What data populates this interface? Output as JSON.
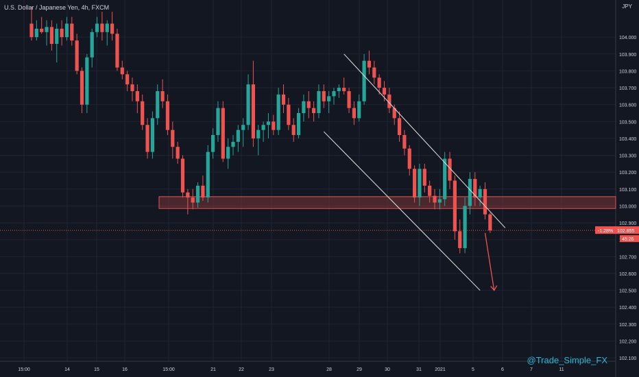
{
  "header": {
    "title": "U.S. Dollar / Japanese Yen, 4h, FXCM",
    "currency": "JPY"
  },
  "watermark": "@Trade_Simple_FX",
  "price_tag": {
    "change": "-1.28%",
    "price": "102.855",
    "timer": "45:26"
  },
  "colors": {
    "background": "#131722",
    "grid": "#1f2433",
    "up": "#26a69a",
    "down": "#ef5350",
    "zone": "#ef5350",
    "channel": "#e6e6e6",
    "arrow": "#ef5350",
    "text": "#d1d4dc"
  },
  "chart_data": {
    "type": "candlestick",
    "y_ticks": [
      "102.100",
      "102.200",
      "102.300",
      "102.400",
      "102.500",
      "102.600",
      "102.700",
      "102.800",
      "102.900",
      "103.000",
      "103.100",
      "103.200",
      "103.300",
      "103.400",
      "103.500",
      "103.600",
      "103.700",
      "103.800",
      "103.900",
      "104.000"
    ],
    "x_ticks": [
      "15:00",
      "14",
      "15",
      "16",
      "15:00",
      "21",
      "22",
      "23",
      "28",
      "29",
      "30",
      "31",
      "2021",
      "5",
      "6",
      "7",
      "11"
    ],
    "ylim": [
      102.08,
      104.22
    ],
    "grid": true,
    "support_zone": {
      "low": 102.985,
      "high": 103.055
    },
    "candles": [
      [
        104.08,
        104.18,
        103.98,
        104.0
      ],
      [
        104.0,
        104.1,
        103.98,
        104.05
      ],
      [
        104.05,
        104.12,
        104.02,
        104.03
      ],
      [
        104.03,
        104.1,
        103.95,
        104.06
      ],
      [
        104.06,
        104.1,
        103.92,
        103.96
      ],
      [
        103.96,
        104.08,
        103.85,
        104.05
      ],
      [
        104.05,
        104.1,
        103.95,
        104.0
      ],
      [
        104.0,
        104.12,
        103.98,
        104.08
      ],
      [
        104.08,
        104.12,
        103.95,
        103.98
      ],
      [
        103.98,
        104.02,
        103.78,
        103.8
      ],
      [
        103.8,
        103.82,
        103.55,
        103.6
      ],
      [
        103.6,
        103.9,
        103.55,
        103.88
      ],
      [
        103.88,
        104.05,
        103.82,
        104.03
      ],
      [
        104.03,
        104.12,
        104.0,
        104.08
      ],
      [
        104.08,
        104.15,
        103.98,
        104.03
      ],
      [
        104.03,
        104.1,
        103.95,
        104.08
      ],
      [
        104.08,
        104.15,
        103.98,
        104.02
      ],
      [
        104.02,
        104.05,
        103.8,
        103.82
      ],
      [
        103.82,
        103.86,
        103.75,
        103.78
      ],
      [
        103.78,
        103.8,
        103.68,
        103.72
      ],
      [
        103.72,
        103.76,
        103.62,
        103.68
      ],
      [
        103.68,
        103.72,
        103.55,
        103.62
      ],
      [
        103.62,
        103.66,
        103.45,
        103.48
      ],
      [
        103.48,
        103.52,
        103.28,
        103.32
      ],
      [
        103.32,
        103.56,
        103.28,
        103.52
      ],
      [
        103.52,
        103.72,
        103.48,
        103.68
      ],
      [
        103.68,
        103.75,
        103.58,
        103.62
      ],
      [
        103.62,
        103.66,
        103.42,
        103.45
      ],
      [
        103.45,
        103.5,
        103.28,
        103.35
      ],
      [
        103.35,
        103.38,
        103.25,
        103.28
      ],
      [
        103.28,
        103.3,
        103.05,
        103.08
      ],
      [
        103.08,
        103.1,
        102.95,
        103.05
      ],
      [
        103.05,
        103.1,
        102.98,
        103.02
      ],
      [
        103.02,
        103.14,
        102.99,
        103.12
      ],
      [
        103.12,
        103.18,
        103.03,
        103.05
      ],
      [
        103.05,
        103.36,
        103.02,
        103.32
      ],
      [
        103.32,
        103.46,
        103.28,
        103.42
      ],
      [
        103.42,
        103.62,
        103.38,
        103.58
      ],
      [
        103.58,
        103.62,
        103.26,
        103.28
      ],
      [
        103.28,
        103.4,
        103.22,
        103.35
      ],
      [
        103.35,
        103.42,
        103.3,
        103.38
      ],
      [
        103.38,
        103.48,
        103.32,
        103.45
      ],
      [
        103.45,
        103.52,
        103.35,
        103.48
      ],
      [
        103.48,
        103.78,
        103.45,
        103.72
      ],
      [
        103.72,
        103.86,
        103.35,
        103.4
      ],
      [
        103.4,
        103.48,
        103.3,
        103.45
      ],
      [
        103.45,
        103.5,
        103.38,
        103.48
      ],
      [
        103.48,
        103.55,
        103.4,
        103.5
      ],
      [
        103.5,
        103.54,
        103.42,
        103.45
      ],
      [
        103.45,
        103.7,
        103.42,
        103.66
      ],
      [
        103.66,
        103.72,
        103.55,
        103.6
      ],
      [
        103.6,
        103.64,
        103.45,
        103.48
      ],
      [
        103.48,
        103.52,
        103.38,
        103.42
      ],
      [
        103.42,
        103.58,
        103.4,
        103.55
      ],
      [
        103.55,
        103.66,
        103.5,
        103.62
      ],
      [
        103.62,
        103.68,
        103.52,
        103.58
      ],
      [
        103.58,
        103.62,
        103.5,
        103.55
      ],
      [
        103.55,
        103.72,
        103.52,
        103.68
      ],
      [
        103.68,
        103.72,
        103.58,
        103.62
      ],
      [
        103.62,
        103.68,
        103.55,
        103.65
      ],
      [
        103.65,
        103.7,
        103.6,
        103.68
      ],
      [
        103.68,
        103.72,
        103.64,
        103.7
      ],
      [
        103.7,
        103.76,
        103.66,
        103.68
      ],
      [
        103.68,
        103.7,
        103.55,
        103.58
      ],
      [
        103.58,
        103.62,
        103.48,
        103.52
      ],
      [
        103.52,
        103.66,
        103.5,
        103.62
      ],
      [
        103.62,
        103.9,
        103.6,
        103.86
      ],
      [
        103.86,
        103.92,
        103.78,
        103.82
      ],
      [
        103.82,
        103.86,
        103.72,
        103.76
      ],
      [
        103.76,
        103.78,
        103.66,
        103.7
      ],
      [
        103.7,
        103.74,
        103.62,
        103.66
      ],
      [
        103.66,
        103.7,
        103.55,
        103.58
      ],
      [
        103.58,
        103.6,
        103.48,
        103.52
      ],
      [
        103.52,
        103.56,
        103.38,
        103.42
      ],
      [
        103.42,
        103.45,
        103.3,
        103.34
      ],
      [
        103.34,
        103.36,
        103.18,
        103.22
      ],
      [
        103.22,
        103.24,
        103.02,
        103.05
      ],
      [
        103.05,
        103.25,
        103.0,
        103.22
      ],
      [
        103.22,
        103.25,
        103.08,
        103.12
      ],
      [
        103.12,
        103.15,
        103.02,
        103.06
      ],
      [
        103.06,
        103.1,
        102.98,
        103.02
      ],
      [
        103.02,
        103.1,
        102.98,
        103.04
      ],
      [
        103.04,
        103.32,
        103.0,
        103.28
      ],
      [
        103.28,
        103.32,
        103.1,
        103.15
      ],
      [
        103.15,
        103.18,
        102.8,
        102.85
      ],
      [
        102.85,
        102.92,
        102.72,
        102.75
      ],
      [
        102.75,
        103.05,
        102.72,
        103.0
      ],
      [
        103.0,
        103.2,
        102.95,
        103.16
      ],
      [
        103.16,
        103.2,
        103.0,
        103.05
      ],
      [
        103.05,
        103.12,
        103.0,
        103.1
      ],
      [
        103.1,
        103.14,
        102.92,
        102.95
      ],
      [
        102.95,
        102.96,
        102.84,
        102.855
      ]
    ],
    "channel_lines": [
      {
        "p1": [
          62,
          103.9
        ],
        "p2": [
          94,
          102.87
        ]
      },
      {
        "p1": [
          58,
          103.44
        ],
        "p2": [
          89,
          102.5
        ]
      }
    ],
    "arrow": {
      "from": [
        90,
        102.84
      ],
      "to": [
        91.8,
        102.5
      ]
    }
  }
}
